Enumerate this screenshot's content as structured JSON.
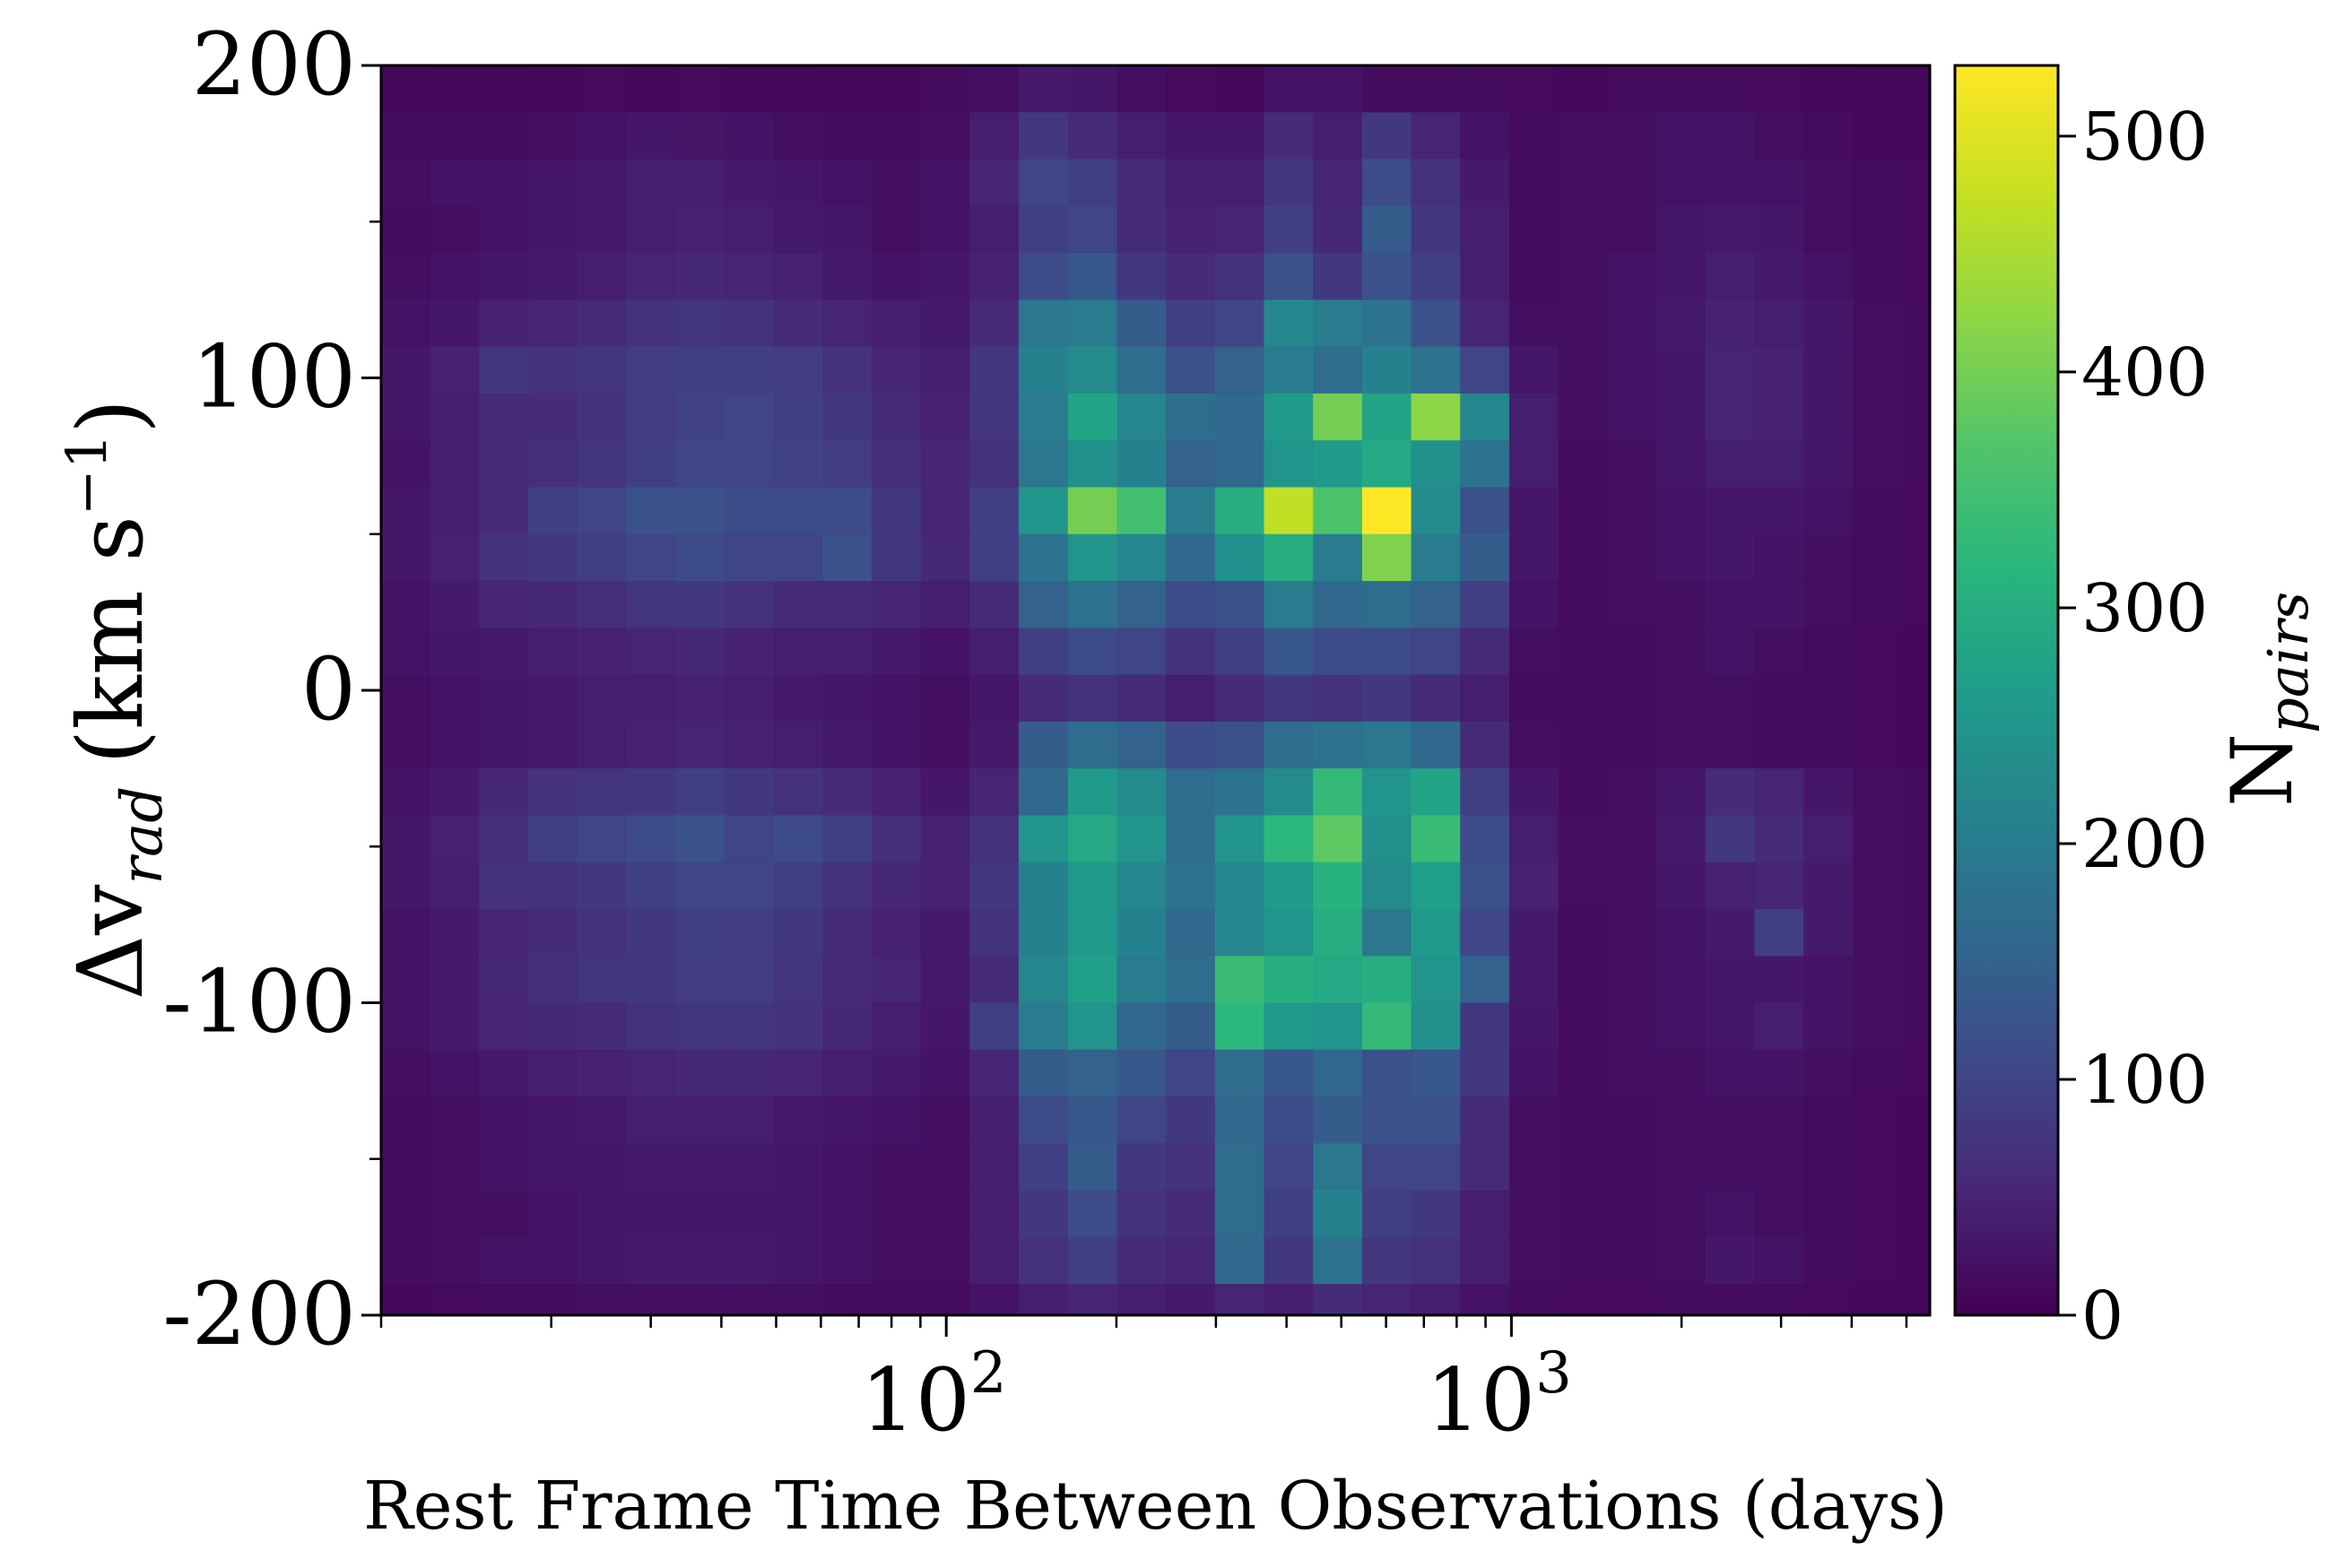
{
  "chart_data": {
    "type": "heatmap",
    "title": "",
    "xlabel": "Rest Frame Time Between Observations (days)",
    "ylabel_base": "Δv",
    "ylabel_subscript": "rad",
    "ylabel_units": "(km s",
    "ylabel_units_exp": "−1",
    "ylabel_units_close": ")",
    "x_scale": "log",
    "xlim": [
      10,
      5500
    ],
    "ylim": [
      -200,
      200
    ],
    "x_major_ticks": [
      {
        "value": 100,
        "base": "10",
        "exp": "2"
      },
      {
        "value": 1000,
        "base": "10",
        "exp": "3"
      }
    ],
    "x_minor_ticks": [
      10,
      20,
      30,
      40,
      50,
      60,
      70,
      80,
      90,
      200,
      300,
      400,
      500,
      600,
      700,
      800,
      900,
      2000,
      3000,
      4000,
      5000
    ],
    "y_major_ticks": [
      {
        "value": 200,
        "label": "200"
      },
      {
        "value": 100,
        "label": "100"
      },
      {
        "value": 0,
        "label": "0"
      },
      {
        "value": -100,
        "label": "-100"
      },
      {
        "value": -200,
        "label": "-200"
      }
    ],
    "y_minor_ticks": [
      150,
      50,
      -50,
      -150
    ],
    "x_bin_edges": [
      10,
      12.21,
      14.91,
      18.21,
      22.24,
      27.16,
      33.17,
      40.5,
      49.46,
      60.4,
      73.76,
      90.08,
      110,
      134.3,
      164.1,
      200.4,
      244.7,
      298.8,
      364.9,
      445.6,
      544.2,
      664.6,
      811.6,
      991.1,
      1210,
      1478,
      1805,
      2204,
      2692,
      3287,
      4014,
      4902,
      5500
    ],
    "y_bin_edges": [
      200,
      185,
      170,
      155,
      140,
      125,
      110,
      95,
      80,
      65,
      50,
      35,
      20,
      5,
      -10,
      -25,
      -40,
      -55,
      -70,
      -85,
      -100,
      -115,
      -130,
      -145,
      -160,
      -175,
      -190,
      -200
    ],
    "value_grid": [
      [
        10,
        8,
        8,
        10,
        12,
        10,
        12,
        8,
        8,
        10,
        10,
        14,
        20,
        35,
        30,
        20,
        12,
        10,
        25,
        25,
        15,
        15,
        15,
        12,
        10,
        15,
        15,
        15,
        12,
        10,
        8,
        8
      ],
      [
        15,
        15,
        15,
        20,
        25,
        30,
        28,
        25,
        20,
        15,
        15,
        20,
        40,
        80,
        60,
        40,
        30,
        30,
        60,
        40,
        80,
        50,
        25,
        15,
        20,
        20,
        25,
        25,
        20,
        15,
        10,
        10
      ],
      [
        20,
        25,
        25,
        30,
        35,
        40,
        40,
        35,
        30,
        25,
        20,
        25,
        50,
        100,
        90,
        60,
        40,
        40,
        80,
        50,
        110,
        70,
        35,
        15,
        20,
        20,
        25,
        25,
        25,
        20,
        15,
        12
      ],
      [
        15,
        20,
        25,
        30,
        35,
        40,
        45,
        40,
        35,
        30,
        20,
        25,
        40,
        90,
        100,
        60,
        45,
        50,
        90,
        55,
        140,
        80,
        40,
        15,
        20,
        20,
        30,
        35,
        30,
        20,
        15,
        12
      ],
      [
        20,
        25,
        30,
        35,
        40,
        50,
        55,
        50,
        45,
        35,
        25,
        30,
        45,
        110,
        130,
        80,
        60,
        70,
        120,
        80,
        120,
        90,
        40,
        15,
        20,
        25,
        30,
        40,
        35,
        25,
        15,
        12
      ],
      [
        25,
        30,
        45,
        50,
        60,
        70,
        75,
        70,
        60,
        50,
        40,
        35,
        60,
        190,
        200,
        140,
        90,
        100,
        220,
        200,
        180,
        120,
        50,
        20,
        20,
        25,
        35,
        45,
        40,
        30,
        20,
        15
      ],
      [
        30,
        45,
        75,
        70,
        75,
        85,
        90,
        90,
        85,
        70,
        50,
        40,
        80,
        210,
        230,
        170,
        120,
        150,
        200,
        170,
        210,
        180,
        100,
        30,
        20,
        25,
        30,
        50,
        45,
        30,
        20,
        15
      ],
      [
        30,
        40,
        60,
        60,
        70,
        85,
        95,
        100,
        90,
        80,
        60,
        45,
        75,
        200,
        280,
        220,
        170,
        160,
        260,
        400,
        280,
        420,
        220,
        40,
        20,
        25,
        30,
        50,
        45,
        30,
        20,
        15
      ],
      [
        25,
        40,
        60,
        65,
        75,
        90,
        100,
        100,
        95,
        85,
        65,
        50,
        70,
        190,
        240,
        210,
        150,
        160,
        250,
        260,
        290,
        240,
        180,
        40,
        15,
        20,
        30,
        40,
        40,
        30,
        20,
        15
      ],
      [
        30,
        40,
        60,
        90,
        100,
        120,
        120,
        110,
        110,
        110,
        80,
        50,
        90,
        250,
        400,
        350,
        200,
        300,
        470,
        360,
        530,
        230,
        120,
        30,
        15,
        20,
        25,
        30,
        30,
        25,
        15,
        12
      ],
      [
        30,
        45,
        70,
        80,
        90,
        100,
        110,
        100,
        100,
        120,
        80,
        55,
        90,
        180,
        250,
        220,
        160,
        240,
        300,
        200,
        410,
        200,
        140,
        30,
        15,
        20,
        25,
        30,
        25,
        20,
        15,
        12
      ],
      [
        25,
        35,
        50,
        55,
        65,
        75,
        80,
        70,
        60,
        60,
        50,
        40,
        60,
        150,
        180,
        150,
        110,
        120,
        200,
        160,
        170,
        150,
        90,
        25,
        15,
        20,
        20,
        25,
        25,
        20,
        15,
        12
      ],
      [
        25,
        30,
        35,
        40,
        45,
        50,
        55,
        45,
        40,
        40,
        35,
        25,
        40,
        90,
        110,
        100,
        70,
        90,
        130,
        110,
        110,
        100,
        60,
        20,
        15,
        15,
        20,
        25,
        20,
        15,
        12,
        10
      ],
      [
        20,
        25,
        30,
        35,
        40,
        40,
        45,
        40,
        35,
        30,
        25,
        20,
        30,
        60,
        70,
        60,
        40,
        60,
        80,
        70,
        80,
        60,
        40,
        15,
        15,
        15,
        20,
        20,
        15,
        15,
        12,
        10
      ],
      [
        20,
        25,
        30,
        35,
        40,
        45,
        50,
        45,
        40,
        35,
        25,
        20,
        35,
        140,
        170,
        150,
        110,
        120,
        170,
        180,
        190,
        160,
        60,
        20,
        15,
        15,
        20,
        20,
        15,
        15,
        12,
        10
      ],
      [
        25,
        35,
        55,
        70,
        75,
        80,
        90,
        80,
        70,
        60,
        45,
        30,
        50,
        160,
        260,
        230,
        170,
        180,
        230,
        330,
        250,
        280,
        90,
        30,
        15,
        20,
        30,
        60,
        50,
        30,
        20,
        15
      ],
      [
        30,
        45,
        65,
        90,
        100,
        110,
        120,
        100,
        110,
        90,
        65,
        45,
        70,
        250,
        290,
        250,
        170,
        250,
        320,
        380,
        240,
        340,
        110,
        40,
        20,
        20,
        35,
        80,
        60,
        40,
        20,
        15
      ],
      [
        30,
        40,
        70,
        70,
        80,
        90,
        100,
        100,
        90,
        70,
        55,
        45,
        80,
        210,
        260,
        220,
        180,
        220,
        260,
        310,
        230,
        270,
        120,
        45,
        20,
        20,
        30,
        45,
        50,
        35,
        20,
        15
      ],
      [
        25,
        35,
        50,
        60,
        70,
        80,
        90,
        85,
        80,
        60,
        45,
        35,
        70,
        210,
        260,
        210,
        160,
        220,
        250,
        300,
        190,
        260,
        100,
        35,
        15,
        20,
        25,
        35,
        90,
        35,
        20,
        15
      ],
      [
        25,
        35,
        55,
        65,
        75,
        80,
        85,
        85,
        75,
        60,
        50,
        35,
        60,
        220,
        270,
        200,
        170,
        340,
        300,
        290,
        300,
        250,
        150,
        35,
        15,
        20,
        25,
        30,
        30,
        25,
        20,
        15
      ],
      [
        25,
        35,
        50,
        55,
        60,
        70,
        75,
        75,
        70,
        55,
        40,
        30,
        90,
        200,
        250,
        160,
        140,
        320,
        260,
        250,
        330,
        240,
        80,
        30,
        15,
        20,
        25,
        30,
        40,
        25,
        20,
        15
      ],
      [
        20,
        25,
        35,
        40,
        45,
        50,
        55,
        55,
        50,
        40,
        35,
        25,
        50,
        140,
        150,
        130,
        100,
        170,
        130,
        160,
        120,
        130,
        80,
        25,
        15,
        20,
        20,
        25,
        25,
        20,
        15,
        12
      ],
      [
        15,
        20,
        25,
        30,
        35,
        40,
        40,
        40,
        35,
        30,
        25,
        20,
        40,
        110,
        130,
        100,
        80,
        160,
        110,
        140,
        120,
        120,
        60,
        20,
        15,
        15,
        20,
        20,
        20,
        15,
        12,
        10
      ],
      [
        15,
        20,
        25,
        30,
        30,
        35,
        35,
        35,
        30,
        25,
        20,
        20,
        40,
        90,
        140,
        80,
        70,
        170,
        100,
        190,
        100,
        100,
        60,
        20,
        15,
        15,
        20,
        20,
        20,
        15,
        12,
        10
      ],
      [
        15,
        20,
        20,
        25,
        30,
        30,
        30,
        30,
        30,
        25,
        20,
        20,
        40,
        80,
        110,
        70,
        60,
        170,
        90,
        210,
        90,
        80,
        40,
        20,
        15,
        15,
        20,
        25,
        20,
        15,
        12,
        10
      ],
      [
        15,
        20,
        25,
        25,
        30,
        35,
        35,
        35,
        30,
        25,
        20,
        20,
        40,
        70,
        90,
        60,
        50,
        160,
        80,
        180,
        80,
        70,
        40,
        20,
        15,
        15,
        20,
        30,
        25,
        15,
        12,
        10
      ],
      [
        10,
        12,
        15,
        15,
        20,
        20,
        20,
        20,
        20,
        15,
        15,
        15,
        25,
        40,
        50,
        40,
        35,
        50,
        40,
        60,
        50,
        40,
        25,
        15,
        12,
        12,
        15,
        15,
        15,
        12,
        10,
        8
      ]
    ],
    "colormap": "viridis",
    "colorbar": {
      "label_base": "N",
      "label_subscript": "pairs",
      "range": [
        0,
        530
      ],
      "ticks": [
        {
          "value": 0,
          "label": "0"
        },
        {
          "value": 100,
          "label": "100"
        },
        {
          "value": 200,
          "label": "200"
        },
        {
          "value": 300,
          "label": "300"
        },
        {
          "value": 400,
          "label": "400"
        },
        {
          "value": 500,
          "label": "500"
        }
      ]
    }
  }
}
